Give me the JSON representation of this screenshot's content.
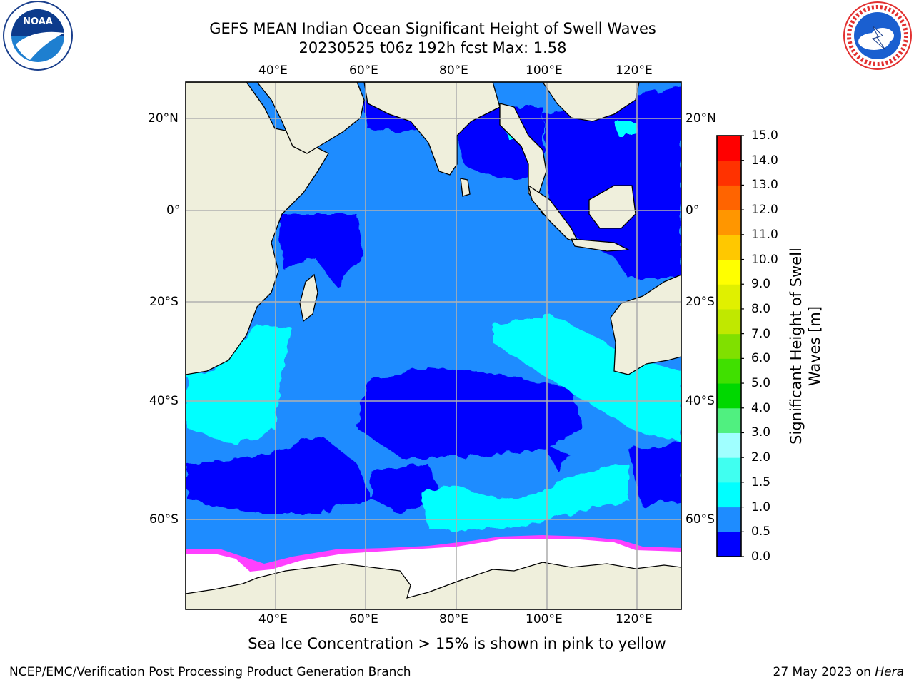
{
  "header": {
    "title_line1": "GEFS MEAN Indian Ocean Significant Height of Swell Waves",
    "title_line2": "20230525 t06z 192h fcst   Max: 1.58"
  },
  "logos": {
    "left": {
      "name": "noaa-logo",
      "text": "NOAA"
    },
    "right": {
      "name": "national-weather-service-logo",
      "text": "NATIONAL WEATHER SERVICE"
    }
  },
  "map": {
    "lon_ticks": [
      "40°E",
      "60°E",
      "80°E",
      "100°E",
      "120°E"
    ],
    "lat_ticks": [
      "20°N",
      "0°",
      "20°S",
      "40°S",
      "60°S"
    ],
    "lon_range": [
      20,
      130
    ],
    "lat_range": [
      -76,
      28
    ],
    "colors": {
      "land": "#efefdc",
      "ocean_low": "#0000ff",
      "ocean_mid": "#1e8cff",
      "ocean_high": "#00ffff",
      "ocean_peak": "#40fff0",
      "ice_edge": "#ff40ff",
      "ice": "#ffffff",
      "grid": "#b0b0b0"
    }
  },
  "colorbar": {
    "label": "Significant Height of Swell Waves [m]",
    "ticks": [
      "0.0",
      "0.5",
      "1.0",
      "1.5",
      "2.0",
      "3.0",
      "4.0",
      "5.0",
      "6.0",
      "7.0",
      "8.0",
      "9.0",
      "10.0",
      "11.0",
      "12.0",
      "13.0",
      "14.0",
      "15.0"
    ],
    "colors": [
      "#0000ff",
      "#1e8cff",
      "#00ffff",
      "#40fff0",
      "#a0ffff",
      "#50f080",
      "#00d800",
      "#40e000",
      "#80e000",
      "#c0e800",
      "#e0f000",
      "#ffff00",
      "#ffc800",
      "#ff9600",
      "#ff6400",
      "#ff3200",
      "#ff0000"
    ]
  },
  "note": "Sea Ice Concentration > 15% is shown in pink to yellow",
  "footer": {
    "left": "NCEP/EMC/Verification Post Processing Product Generation Branch",
    "right_date": "27 May 2023 on ",
    "right_machine": "Hera"
  }
}
